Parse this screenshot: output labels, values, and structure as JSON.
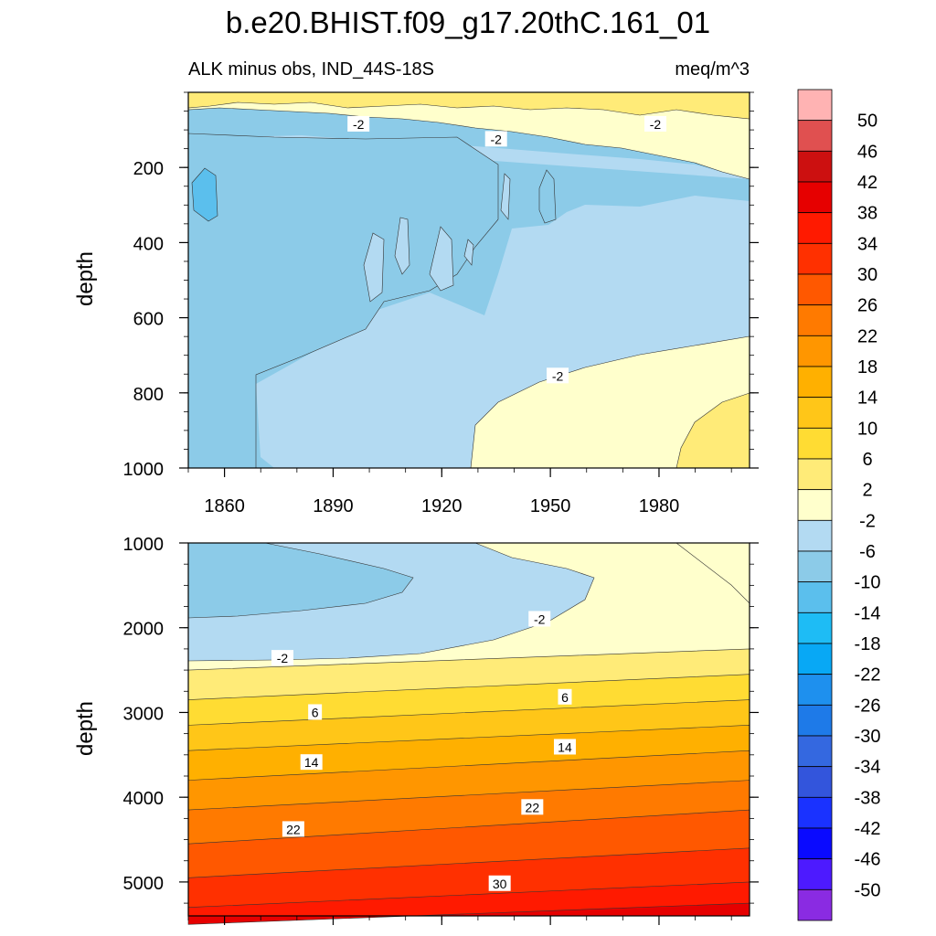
{
  "chart_data": {
    "type": "heatmap",
    "title": "b.e20.BHIST.f09_g17.20thC.161_01",
    "left_subtitle": "ALK minus obs, IND_44S-18S",
    "right_subtitle": "meq/m^3",
    "xlabel": "",
    "ylabel": "depth",
    "x_range": [
      1850,
      2005
    ],
    "x_ticks": [
      1860,
      1890,
      1920,
      1950,
      1980
    ],
    "x_tick_labels": [
      "1860",
      "1890",
      "1920",
      "1950",
      "1980"
    ],
    "panels": [
      {
        "name": "upper",
        "ylim": [
          1000,
          0
        ],
        "y_ticks": [
          200,
          400,
          600,
          800,
          1000
        ],
        "y_tick_labels": [
          "200",
          "400",
          "600",
          "800",
          "1000"
        ],
        "contour_labels": [
          {
            "x": 1897,
            "y": 85,
            "text": "-2"
          },
          {
            "x": 1935,
            "y": 125,
            "text": "-2"
          },
          {
            "x": 1979,
            "y": 85,
            "text": "-2"
          },
          {
            "x": 1952,
            "y": 755,
            "text": "-2"
          }
        ]
      },
      {
        "name": "lower",
        "ylim": [
          5400,
          1000
        ],
        "y_ticks": [
          1000,
          2000,
          3000,
          4000,
          5000
        ],
        "y_tick_labels": [
          "1000",
          "2000",
          "3000",
          "4000",
          "5000"
        ],
        "contour_labels": [
          {
            "x": 1947,
            "y": 1900,
            "text": "-2"
          },
          {
            "x": 1876,
            "y": 2360,
            "text": "-2"
          },
          {
            "x": 1954,
            "y": 2820,
            "text": "6"
          },
          {
            "x": 1885,
            "y": 3000,
            "text": "6"
          },
          {
            "x": 1954,
            "y": 3410,
            "text": "14"
          },
          {
            "x": 1884,
            "y": 3590,
            "text": "14"
          },
          {
            "x": 1945,
            "y": 4120,
            "text": "22"
          },
          {
            "x": 1879,
            "y": 4380,
            "text": "22"
          },
          {
            "x": 1936,
            "y": 5020,
            "text": "30"
          }
        ]
      }
    ],
    "colorbar": {
      "labels": [
        "50",
        "46",
        "42",
        "38",
        "34",
        "30",
        "26",
        "22",
        "18",
        "14",
        "10",
        "6",
        "2",
        "-2",
        "-6",
        "-10",
        "-14",
        "-18",
        "-22",
        "-26",
        "-30",
        "-34",
        "-38",
        "-42",
        "-46",
        "-50"
      ],
      "colors": [
        "#ffb3b3",
        "#e05050",
        "#cc1010",
        "#e60000",
        "#ff1a00",
        "#ff3000",
        "#ff5800",
        "#ff7a00",
        "#ff9600",
        "#ffb000",
        "#ffc618",
        "#ffdc33",
        "#ffeb78",
        "#ffffcc",
        "#b3daf2",
        "#8ccbe8",
        "#5bbfed",
        "#1ebcf5",
        "#08a8f5",
        "#1e90ee",
        "#1e7ae8",
        "#3468e0",
        "#3355dc",
        "#1a32ff",
        "#0a0aff",
        "#4d1aff",
        "#8a2be2"
      ]
    }
  }
}
